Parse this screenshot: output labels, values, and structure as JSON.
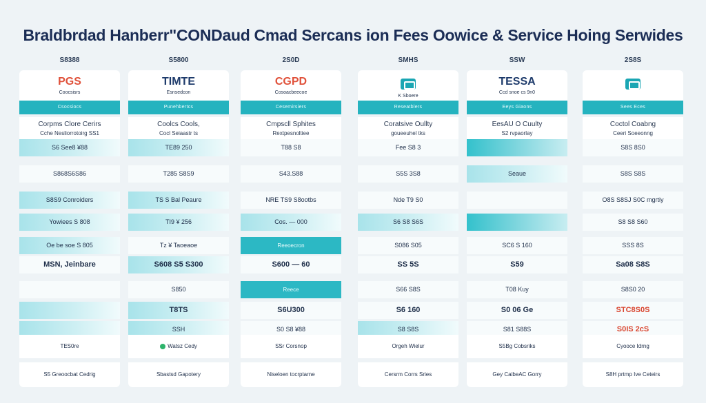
{
  "title": "Braldbrdad Hanberr\"CONDaud Cmad Sercans ion Fees Oowice & Service Hoing Serwides",
  "columns": [
    {
      "tag": "S8388",
      "logo": "PGS",
      "logo_color": "#e0513a",
      "logo_sub": "Coocsisrs",
      "band": "Csocsiocs",
      "desc1": "Corpms Clore Cerirs",
      "desc2": "Cche Nesliorrotoirg SS1",
      "rows": [
        "S6 See8 ¥88",
        "S868S6S86",
        "S8S9 Conroiders",
        "Yowiees S 808",
        "Oe be soe S 805",
        "MSN, Jeinbare",
        "",
        "",
        "",
        ""
      ],
      "mid": "TES0re",
      "foot": "S5 Greoocbat Cedrig"
    },
    {
      "tag": "S5800",
      "logo": "TIMTE",
      "logo_color": "#1e3b6b",
      "logo_sub": "Esnsedcon",
      "band": "Punehbertcs",
      "desc1": "Coolcs Cools,",
      "desc2": "Cocl Seiaastr ts",
      "rows": [
        "TE89 250",
        "T285 S8S9",
        "TS S Bal Peaure",
        "TI9 ¥ 256",
        "Tz ¥ Taoeaoe",
        "S608 S5 S300",
        "S850",
        "T8TS",
        "SSH",
        ""
      ],
      "mid": "Watsz Cedy",
      "foot": "Sbastsd Gapotery"
    },
    {
      "tag": "2S0D",
      "logo": "CGPD",
      "logo_color": "#e0513a",
      "logo_sub": "Cosoacbeecoe",
      "band": "Cesemirsiers",
      "desc1": "Cmpscll Sphites",
      "desc2": "Rextpesnoltiee",
      "rows": [
        "T88 S8",
        "S43.S88",
        "NRE TS9 S8ootbs",
        "Cos. — 000",
        "Reeoecron",
        "S600 — 60",
        "Reece",
        "S6U300",
        "S0 S8 ¥88",
        ""
      ],
      "mid": "SSr Corsnop",
      "foot": "Niseloen tocrptarne"
    },
    {
      "tag": "SMHS",
      "logo": "",
      "logo_color": "#1aa6b3",
      "logo_sub": "K Sboere",
      "band": "Reseatblers",
      "desc1": "Coratsive Oullty",
      "desc2": "goueeuhel tks",
      "rows": [
        "Fee S8 3",
        "S5S 3S8",
        "Nde T9 S0",
        "S6 S8 S6S",
        "S086 S05",
        "SS 5S",
        "S66 S8S",
        "S6 160",
        "S8 S8S",
        ""
      ],
      "mid": "Orgeh Wielur",
      "foot": "Cersrm Corrs Sries"
    },
    {
      "tag": "SSW",
      "logo": "TESSA",
      "logo_color": "#1e3b6b",
      "logo_sub": "Ccd snoe cs 9n0",
      "band": "Eeys Giaons",
      "desc1": "EesAU O Cuulty",
      "desc2": "S2 rvpaorlay",
      "rows": [
        "",
        "Seaue",
        "",
        "",
        "SC6 S 160",
        "S59",
        "T08 Kuy",
        "S0 06 Ge",
        "S81 S88S",
        ""
      ],
      "mid": "S5Bg Cobsriks",
      "foot": "Gey CaibeAC Gorry"
    },
    {
      "tag": "2S8S",
      "logo": "",
      "logo_color": "#1aa6b3",
      "logo_sub": "",
      "band": "Sees Eces",
      "desc1": "Coctol Coabng",
      "desc2": "Ceeri Soeeonng",
      "rows": [
        "S8S 8S0",
        "S8S S8S",
        "O8S S8SJ S0C mgrtiy",
        "S8 S8 S60",
        "SSS 8S",
        "Sa08 S8S",
        "S8S0 20",
        "STC8S0S",
        "S0IS 2cS",
        ""
      ],
      "mid": "Cyooce Idrng",
      "foot": "S8H prtmp Ive Ceteirs"
    }
  ]
}
